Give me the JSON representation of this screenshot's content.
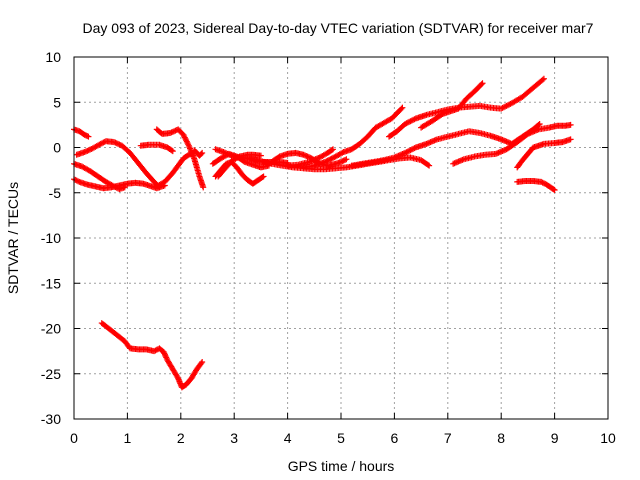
{
  "chart_data": {
    "type": "scatter",
    "title": "Day 093 of 2023, Sidereal Day-to-day VTEC variation (SDTVAR) for receiver mar7",
    "xlabel": "GPS time / hours",
    "ylabel": "SDTVAR / TECUs",
    "xlim": [
      0,
      10
    ],
    "ylim": [
      -30,
      10
    ],
    "x_ticks": [
      0,
      1,
      2,
      3,
      4,
      5,
      6,
      7,
      8,
      9,
      10
    ],
    "y_ticks": [
      -30,
      -25,
      -20,
      -15,
      -10,
      -5,
      0,
      5,
      10
    ],
    "grid": true,
    "marker": "plus",
    "colors": {
      "series": "#ff0000",
      "grid": "#a0a0a0",
      "axes": "#000000"
    },
    "series": [
      {
        "x": [
          0.0,
          0.1,
          0.2,
          0.27
        ],
        "y": [
          2.0,
          1.8,
          1.4,
          1.2
        ]
      },
      {
        "x": [
          0.0,
          0.1,
          0.25,
          0.4,
          0.55,
          0.7,
          0.85,
          1.0,
          1.15,
          1.3,
          1.45,
          1.55,
          1.7
        ],
        "y": [
          -3.5,
          -3.8,
          -4.1,
          -4.3,
          -4.5,
          -4.4,
          -4.2,
          -4.0,
          -3.9,
          -4.0,
          -4.3,
          -4.5,
          -4.2
        ]
      },
      {
        "x": [
          0.0,
          0.15,
          0.3,
          0.45,
          0.6,
          0.75,
          0.85,
          0.95
        ],
        "y": [
          -1.8,
          -2.1,
          -2.6,
          -3.2,
          -3.8,
          -4.3,
          -4.6,
          -4.4
        ]
      },
      {
        "x": [
          0.05,
          0.2,
          0.35,
          0.5,
          0.6,
          0.75,
          0.9,
          1.05,
          1.2,
          1.35,
          1.5,
          1.6
        ],
        "y": [
          -0.8,
          -0.5,
          -0.1,
          0.4,
          0.7,
          0.6,
          0.2,
          -0.6,
          -1.7,
          -2.8,
          -3.8,
          -4.4
        ]
      },
      {
        "x": [
          1.25,
          1.4,
          1.6,
          1.75,
          1.85
        ],
        "y": [
          0.2,
          0.3,
          0.3,
          0.0,
          -0.4
        ]
      },
      {
        "x": [
          1.55,
          1.65,
          1.8,
          1.95,
          2.05,
          2.15,
          2.25,
          2.35,
          2.42
        ],
        "y": [
          2.0,
          1.5,
          1.6,
          2.0,
          1.4,
          0.2,
          -1.2,
          -3.2,
          -4.4
        ]
      },
      {
        "x": [
          1.55,
          1.7,
          1.85,
          1.95,
          2.05,
          2.15,
          2.25
        ],
        "y": [
          -4.3,
          -3.8,
          -2.8,
          -2.0,
          -1.2,
          -0.8,
          -0.6
        ]
      },
      {
        "x": [
          2.25,
          2.3,
          2.35,
          2.4
        ],
        "y": [
          -0.3,
          -0.6,
          -0.9,
          -0.6
        ]
      },
      {
        "x": [
          0.52,
          0.65,
          0.8,
          0.95,
          1.05,
          1.2,
          1.35,
          1.5,
          1.6,
          1.68,
          1.75,
          1.85,
          1.95,
          2.02,
          2.1,
          2.2,
          2.3,
          2.4
        ],
        "y": [
          -19.4,
          -20.0,
          -20.7,
          -21.4,
          -22.2,
          -22.3,
          -22.3,
          -22.5,
          -22.2,
          -22.6,
          -23.5,
          -24.5,
          -25.5,
          -26.5,
          -26.2,
          -25.5,
          -24.5,
          -23.7
        ]
      },
      {
        "x": [
          2.65,
          2.8,
          2.95,
          3.1,
          3.25,
          3.4,
          3.55,
          3.7,
          3.85,
          4.0
        ],
        "y": [
          -0.2,
          -0.5,
          -0.9,
          -1.1,
          -1.2,
          -1.5,
          -1.6,
          -1.6,
          -1.6,
          -1.7
        ]
      },
      {
        "x": [
          2.6,
          2.75,
          2.9,
          3.05,
          3.2,
          3.35,
          3.5,
          3.65
        ],
        "y": [
          -1.8,
          -1.2,
          -0.7,
          -1.0,
          -1.6,
          -1.9,
          -2.2,
          -2.0
        ]
      },
      {
        "x": [
          2.65,
          2.75,
          2.85,
          2.95,
          3.05,
          3.15,
          3.25,
          3.35,
          3.45,
          3.55
        ],
        "y": [
          -3.2,
          -2.5,
          -1.8,
          -1.6,
          -2.2,
          -3.0,
          -3.6,
          -4.0,
          -3.6,
          -3.2
        ]
      },
      {
        "x": [
          2.7,
          2.8,
          2.95,
          3.1,
          3.25,
          3.35,
          3.5
        ],
        "y": [
          -3.2,
          -2.5,
          -1.5,
          -1.0,
          -0.8,
          -0.8,
          -0.9
        ]
      },
      {
        "x": [
          3.3,
          3.5,
          3.7,
          3.9,
          4.1,
          4.3,
          4.5,
          4.7,
          4.9,
          5.1,
          5.3,
          5.5,
          5.7,
          5.9,
          6.1,
          6.3,
          6.5,
          6.65
        ],
        "y": [
          -1.2,
          -1.5,
          -1.8,
          -2.0,
          -2.2,
          -2.3,
          -2.4,
          -2.4,
          -2.3,
          -2.2,
          -2.0,
          -1.8,
          -1.6,
          -1.4,
          -1.2,
          -1.1,
          -1.4,
          -2.0
        ]
      },
      {
        "x": [
          3.7,
          3.85,
          4.0,
          4.15,
          4.3,
          4.45,
          4.6,
          4.75,
          4.9,
          5.0,
          5.1
        ],
        "y": [
          -1.6,
          -1.0,
          -0.7,
          -0.6,
          -0.8,
          -1.2,
          -1.8,
          -2.0,
          -1.8,
          -1.6,
          -1.3
        ]
      },
      {
        "x": [
          4.0,
          4.2,
          4.4,
          4.6,
          4.75,
          4.85
        ],
        "y": [
          -2.0,
          -1.9,
          -1.6,
          -1.1,
          -0.6,
          -0.2
        ]
      },
      {
        "x": [
          4.3,
          4.5,
          4.7,
          4.9,
          5.05,
          5.2,
          5.35,
          5.5,
          5.65,
          5.8,
          5.95,
          6.05,
          6.15
        ],
        "y": [
          -2.2,
          -2.0,
          -1.6,
          -1.0,
          -0.5,
          -0.2,
          0.4,
          1.2,
          2.2,
          2.7,
          3.2,
          3.8,
          4.4
        ]
      },
      {
        "x": [
          5.2,
          5.4,
          5.6,
          5.8,
          6.0,
          6.2,
          6.4,
          6.6,
          6.8,
          7.0,
          7.2,
          7.4,
          7.6,
          7.8,
          8.0,
          8.2,
          8.4,
          8.6,
          8.72
        ],
        "y": [
          -2.0,
          -1.8,
          -1.6,
          -1.4,
          -1.1,
          -0.6,
          0.0,
          0.4,
          0.9,
          1.2,
          1.5,
          1.8,
          1.6,
          1.3,
          0.9,
          0.4,
          1.2,
          2.0,
          2.6
        ]
      },
      {
        "x": [
          5.9,
          6.05,
          6.2,
          6.4,
          6.6,
          6.8,
          7.0,
          7.2,
          7.4,
          7.6,
          7.8,
          8.0,
          8.2,
          8.4,
          8.6,
          8.8
        ],
        "y": [
          1.2,
          1.8,
          2.6,
          3.2,
          3.6,
          3.9,
          4.2,
          4.4,
          4.5,
          4.6,
          4.4,
          4.3,
          4.9,
          5.6,
          6.6,
          7.6
        ]
      },
      {
        "x": [
          6.5,
          6.7,
          6.9,
          7.05,
          7.2,
          7.35,
          7.5,
          7.65
        ],
        "y": [
          2.2,
          2.9,
          3.7,
          4.0,
          4.3,
          5.4,
          6.2,
          7.1
        ]
      },
      {
        "x": [
          7.1,
          7.3,
          7.5,
          7.7,
          7.9,
          8.1,
          8.3,
          8.5,
          8.7,
          8.9,
          9.05,
          9.2,
          9.3
        ],
        "y": [
          -1.8,
          -1.3,
          -1.0,
          -0.8,
          -0.7,
          -0.2,
          0.6,
          1.5,
          2.0,
          2.2,
          2.4,
          2.4,
          2.5
        ]
      },
      {
        "x": [
          8.3,
          8.4,
          8.5,
          8.6,
          8.8,
          9.0,
          9.15,
          9.3
        ],
        "y": [
          -2.2,
          -1.4,
          -0.7,
          0.0,
          0.4,
          0.5,
          0.6,
          0.9
        ]
      },
      {
        "x": [
          8.3,
          8.45,
          8.6,
          8.75,
          8.85,
          8.95,
          9.0
        ],
        "y": [
          -3.8,
          -3.7,
          -3.7,
          -3.8,
          -4.1,
          -4.5,
          -4.7
        ]
      }
    ]
  }
}
